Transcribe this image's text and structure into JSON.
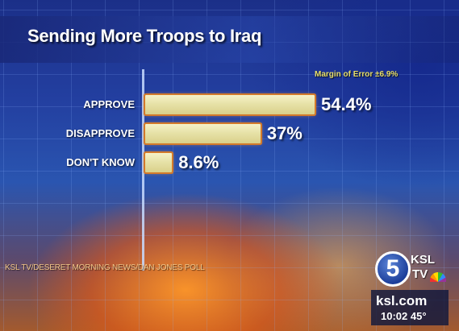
{
  "chart_data": {
    "type": "bar",
    "orientation": "horizontal",
    "title": "Sending More Troops to Iraq",
    "categories": [
      "APPROVE",
      "DISAPPROVE",
      "DON'T KNOW"
    ],
    "values": [
      54.4,
      37,
      8.6
    ],
    "value_labels": [
      "54.4%",
      "37%",
      "8.6%"
    ],
    "annotation": "Margin of Error ±6.9%",
    "xlim": [
      0,
      100
    ],
    "grid": true,
    "bar_color": "#e7e2a8",
    "bar_outline_color": "#d37a2a"
  },
  "source": "KSL TV/DESERET MORNING NEWS/DAN JONES POLL",
  "branding": {
    "channel_number": "5",
    "ksl": "KSL",
    "tv": "TV",
    "site": "ksl.com",
    "clock": "10:02  45°"
  }
}
